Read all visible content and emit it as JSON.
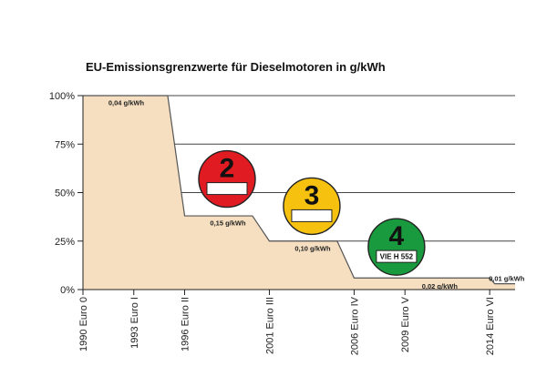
{
  "chart_data": {
    "type": "area",
    "title": "EU-Emissionsgrenzwerte für Dieselmotoren in g/kWh",
    "xlabel": "",
    "ylabel": "",
    "yticks": [
      "100%",
      "75%",
      "50%",
      "25%",
      "0%"
    ],
    "ytick_values": [
      100,
      75,
      50,
      25,
      0
    ],
    "ylim": [
      0,
      100
    ],
    "xlim": [
      1990,
      2015.5
    ],
    "grid": true,
    "fill_color": "#f5dfc0",
    "outline_color": "#555555",
    "xticks": [
      {
        "value": 1990,
        "label": "1990 Euro 0"
      },
      {
        "value": 1993,
        "label": "1993 Euro I"
      },
      {
        "value": 1996,
        "label": "1996 Euro II"
      },
      {
        "value": 2001,
        "label": "2001 Euro III"
      },
      {
        "value": 2006,
        "label": "2006 Euro IV"
      },
      {
        "value": 2009,
        "label": "2009 Euro V"
      },
      {
        "value": 2014,
        "label": "2014 Euro VI"
      }
    ],
    "x": [
      1990,
      1995,
      1996,
      2000,
      2001,
      2005,
      2006,
      2014,
      2014.3,
      2015.5
    ],
    "y": [
      100,
      100,
      38,
      38,
      25,
      25,
      6,
      6,
      3,
      3
    ],
    "annotations": [
      {
        "x": 1991.5,
        "y": 95,
        "text": "0,04 g/kWh"
      },
      {
        "x": 1997.5,
        "y": 33,
        "text": "0,15 g/kWh"
      },
      {
        "x": 2002.5,
        "y": 20,
        "text": "0,10 g/kWh"
      },
      {
        "x": 2010.0,
        "y": 0.5,
        "text": "0,02 g/kWh"
      },
      {
        "x": 2015.0,
        "y": 4.5,
        "text": "0,01 g/kWh"
      }
    ],
    "badges": [
      {
        "number": "2",
        "color": "#e11b22",
        "plate": "",
        "x": 1998.5,
        "y": 57
      },
      {
        "number": "3",
        "color": "#f7c20f",
        "plate": "",
        "x": 2003.5,
        "y": 43
      },
      {
        "number": "4",
        "color": "#1a9a3e",
        "plate": "VIE H 552",
        "x": 2008.5,
        "y": 22
      }
    ]
  }
}
